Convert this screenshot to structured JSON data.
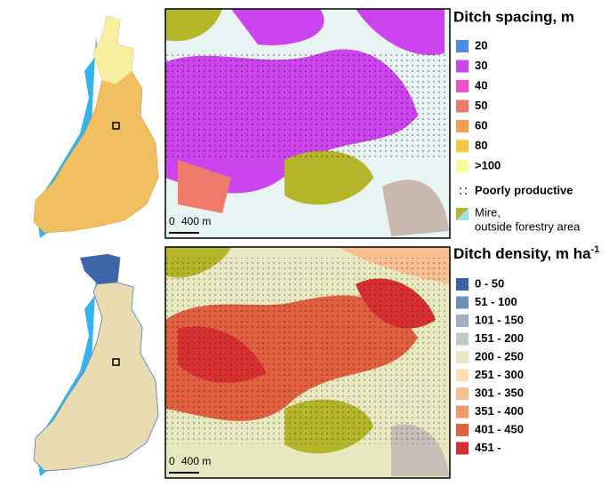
{
  "top_panel": {
    "legend_title": "Ditch spacing, m",
    "legend_items": [
      {
        "label": "20",
        "color": "#4a8ee8"
      },
      {
        "label": "30",
        "color": "#cc44ee"
      },
      {
        "label": "40",
        "color": "#f050c8"
      },
      {
        "label": "50",
        "color": "#f07a6a"
      },
      {
        "label": "60",
        "color": "#f5a050"
      },
      {
        "label": "80",
        "color": "#f8c840"
      },
      {
        "label": ">100",
        "color": "#fafa9a"
      }
    ],
    "poorly_productive": "Poorly productive",
    "mire": {
      "line1": "Mire,",
      "line2": "outside forestry area"
    },
    "scale_bar": {
      "start": "0",
      "end": "400 m"
    }
  },
  "bottom_panel": {
    "legend_title": {
      "text": "Ditch density, m ha",
      "superscript": "-1"
    },
    "legend_items": [
      {
        "label": "0 - 50",
        "color": "#3b66a8"
      },
      {
        "label": "51 - 100",
        "color": "#6f8fba"
      },
      {
        "label": "101 - 150",
        "color": "#9fb0c4"
      },
      {
        "label": "151 - 200",
        "color": "#bfc9c4"
      },
      {
        "label": "200 - 250",
        "color": "#e8e8c0"
      },
      {
        "label": "251 - 300",
        "color": "#fae0b0"
      },
      {
        "label": "301 - 350",
        "color": "#f8c090"
      },
      {
        "label": "351 - 400",
        "color": "#f09868"
      },
      {
        "label": "401 - 450",
        "color": "#e06040"
      },
      {
        "label": "451 -",
        "color": "#d83030"
      }
    ],
    "scale_bar": {
      "start": "0",
      "end": "400 m"
    }
  }
}
